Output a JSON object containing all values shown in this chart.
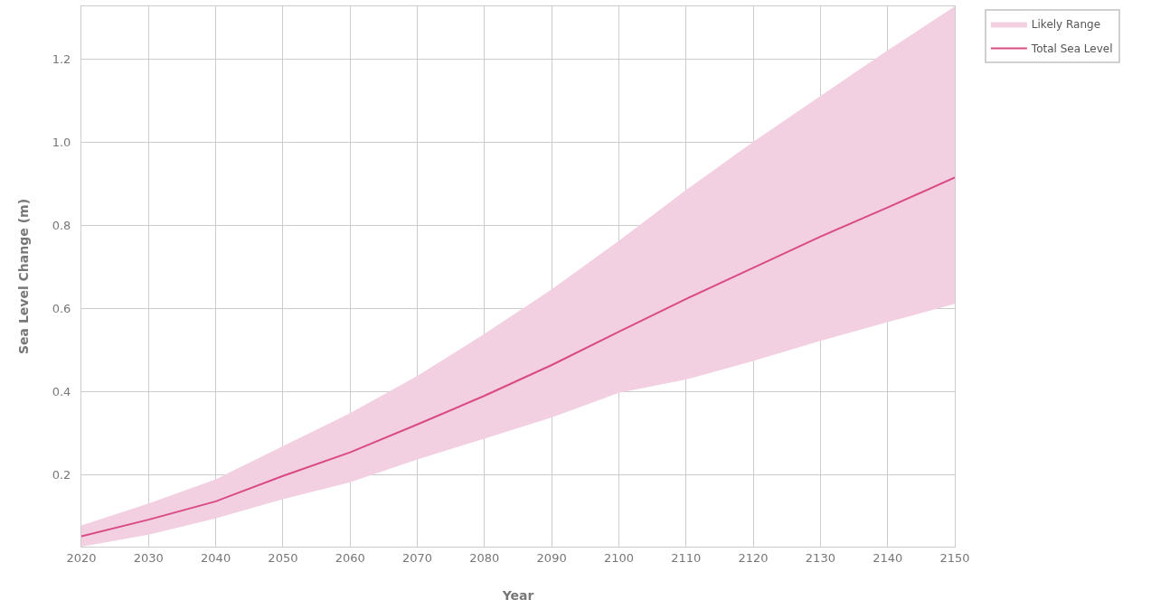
{
  "chart_data": {
    "type": "line",
    "xlabel": "Year",
    "ylabel": "Sea Level Change (m)",
    "x": [
      2020,
      2030,
      2040,
      2050,
      2060,
      2070,
      2080,
      2090,
      2100,
      2110,
      2120,
      2130,
      2140,
      2150
    ],
    "series": [
      {
        "name": "Likely Range",
        "type": "area",
        "color": "#f2d0e1",
        "values": [
          null,
          null,
          null,
          null,
          null,
          null,
          null,
          null,
          null,
          null,
          null,
          null,
          null,
          null
        ],
        "lower": [
          0.028,
          0.057,
          0.096,
          0.142,
          0.183,
          0.238,
          0.288,
          0.339,
          0.398,
          0.43,
          0.475,
          0.523,
          0.568,
          0.612
        ],
        "upper": [
          0.079,
          0.132,
          0.19,
          0.27,
          0.349,
          0.439,
          0.54,
          0.647,
          0.764,
          0.886,
          1.002,
          1.112,
          1.222,
          1.328
        ]
      },
      {
        "name": "Total Sea Level",
        "color": "#d94a86",
        "values": [
          0.053,
          0.093,
          0.137,
          0.198,
          0.255,
          0.322,
          0.391,
          0.465,
          0.545,
          0.624,
          0.699,
          0.774,
          0.844,
          0.916
        ]
      }
    ],
    "xlim": [
      2020,
      2150
    ],
    "xticks": [
      2020,
      2030,
      2040,
      2050,
      2060,
      2070,
      2080,
      2090,
      2100,
      2110,
      2120,
      2130,
      2140,
      2150
    ],
    "ylim": [
      0.028,
      1.328
    ],
    "yticks": [
      0.2,
      0.4,
      0.6,
      0.8,
      {
        "value": 1.0,
        "label": "1.0"
      },
      1.2
    ],
    "grid": true,
    "legend": "top right",
    "line_style": "solid",
    "marker": "none"
  }
}
